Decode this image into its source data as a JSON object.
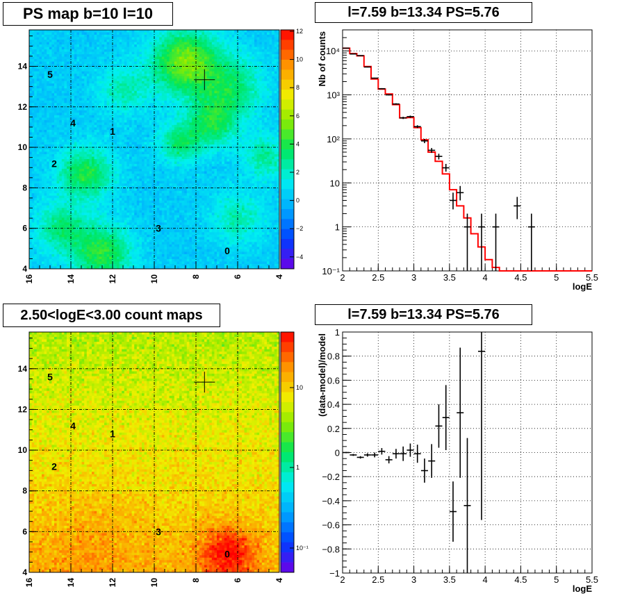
{
  "panels": {
    "tl_title": "PS map b=10 l=10",
    "tr_title": "l=7.59 b=13.34 PS=5.76",
    "bl_title": "2.50<logE<3.00 count maps",
    "br_title": "l=7.59 b=13.34 PS=5.76"
  },
  "chart_data": [
    {
      "type": "heatmap",
      "name": "ps-map",
      "title": "PS map b=10 l=10",
      "xlim": [
        16,
        4
      ],
      "ylim": [
        4,
        15.8
      ],
      "x_ticks": [
        "16",
        "14",
        "12",
        "10",
        "8",
        "6",
        "4"
      ],
      "y_ticks": [
        "4",
        "6",
        "8",
        "10",
        "12",
        "14"
      ],
      "colorbar_ticks": [
        "12",
        "10",
        "8",
        "6",
        "4",
        "2",
        "0",
        "−2",
        "−4"
      ],
      "colorbar_range": [
        -5,
        12
      ],
      "sources": [
        {
          "label": "5",
          "l": 15.0,
          "b": 13.6
        },
        {
          "label": "4",
          "l": 13.9,
          "b": 11.2
        },
        {
          "label": "1",
          "l": 12.0,
          "b": 10.8
        },
        {
          "label": "2",
          "l": 14.8,
          "b": 9.2
        },
        {
          "label": "3",
          "l": 9.8,
          "b": 6.0
        },
        {
          "label": "0",
          "l": 6.5,
          "b": 4.9
        }
      ],
      "marker": {
        "l": 7.59,
        "b": 13.34
      },
      "grid": true
    },
    {
      "type": "line",
      "name": "spectrum",
      "title": "l=7.59 b=13.34 PS=5.76",
      "xlabel": "logE",
      "ylabel": "Nb of counts",
      "y_scale": "log",
      "xlim": [
        2,
        5.5
      ],
      "ylim": [
        0.1,
        30000
      ],
      "x_ticks": [
        "2",
        "2.5",
        "3",
        "3.5",
        "4",
        "4.5",
        "5",
        "5.5"
      ],
      "y_ticks": [
        "10⁻¹",
        "1",
        "10",
        "10²",
        "10³",
        "10⁴"
      ],
      "grid": true,
      "series": [
        {
          "kind": "data",
          "x": [
            2.05,
            2.15,
            2.25,
            2.35,
            2.45,
            2.55,
            2.65,
            2.75,
            2.85,
            2.95,
            3.05,
            3.15,
            3.25,
            3.35,
            3.45,
            3.55,
            3.65,
            3.75,
            3.95,
            4.15,
            4.45,
            4.65
          ],
          "y": [
            11500,
            8500,
            7800,
            4300,
            2400,
            1380,
            1000,
            620,
            300,
            320,
            190,
            90,
            55,
            40,
            22,
            4,
            6,
            1,
            1,
            1,
            3,
            1
          ],
          "y_low": [
            11300,
            8400,
            7700,
            4200,
            2350,
            1340,
            970,
            600,
            283,
            302,
            176,
            80,
            48,
            34,
            18,
            2.5,
            4,
            0.1,
            0.1,
            0.1,
            1.5,
            0.1
          ],
          "y_high": [
            11700,
            8600,
            7900,
            4400,
            2450,
            1420,
            1030,
            645,
            317,
            338,
            204,
            100,
            62,
            46,
            27,
            6,
            8.5,
            2,
            2,
            2,
            4.8,
            2
          ]
        },
        {
          "kind": "model",
          "color": "#ff0000",
          "edges": [
            2.0,
            2.1,
            2.2,
            2.3,
            2.4,
            2.5,
            2.6,
            2.7,
            2.8,
            2.9,
            3.0,
            3.1,
            3.2,
            3.3,
            3.4,
            3.5,
            3.6,
            3.7,
            3.8,
            3.9,
            4.0,
            4.1,
            4.2,
            4.3,
            5.5
          ],
          "values": [
            11500,
            8700,
            7700,
            4400,
            2300,
            1350,
            1050,
            600,
            300,
            305,
            180,
            95,
            50,
            31,
            16,
            7,
            3,
            1.6,
            0.7,
            0.35,
            0.18,
            0.12,
            0.1,
            0.1
          ]
        }
      ]
    },
    {
      "type": "heatmap",
      "name": "count-map",
      "title": "2.50<logE<3.00 count maps",
      "xlim": [
        16,
        4
      ],
      "ylim": [
        4,
        15.8
      ],
      "x_ticks": [
        "16",
        "14",
        "12",
        "10",
        "8",
        "6",
        "4"
      ],
      "y_ticks": [
        "4",
        "6",
        "8",
        "10",
        "12",
        "14"
      ],
      "colorbar_scale": "log",
      "colorbar_ticks": [
        "10",
        "1",
        "10⁻¹"
      ],
      "colorbar_range": [
        0.04,
        40
      ],
      "sources": [
        {
          "label": "5",
          "l": 15.0,
          "b": 13.6
        },
        {
          "label": "4",
          "l": 13.9,
          "b": 11.2
        },
        {
          "label": "1",
          "l": 12.0,
          "b": 10.8
        },
        {
          "label": "2",
          "l": 14.8,
          "b": 9.2
        },
        {
          "label": "3",
          "l": 9.8,
          "b": 6.0
        },
        {
          "label": "0",
          "l": 6.5,
          "b": 4.9
        }
      ],
      "marker": {
        "l": 7.59,
        "b": 13.34
      },
      "grid": true
    },
    {
      "type": "scatter",
      "name": "residuals",
      "title": "l=7.59 b=13.34 PS=5.76",
      "xlabel": "logE",
      "ylabel": "(data-model)/model",
      "xlim": [
        2,
        5.5
      ],
      "ylim": [
        -1,
        1
      ],
      "x_ticks": [
        "2",
        "2.5",
        "3",
        "3.5",
        "4",
        "4.5",
        "5",
        "5.5"
      ],
      "y_ticks": [
        "−1",
        "−0.8",
        "−0.6",
        "−0.4",
        "−0.2",
        "0",
        "0.2",
        "0.4",
        "0.6",
        "0.8",
        "1"
      ],
      "grid": true,
      "x": [
        2.05,
        2.15,
        2.25,
        2.35,
        2.45,
        2.55,
        2.65,
        2.75,
        2.85,
        2.95,
        3.05,
        3.15,
        3.25,
        3.35,
        3.45,
        3.55,
        3.65,
        3.75,
        3.95
      ],
      "y": [
        0.0,
        -0.02,
        -0.04,
        -0.02,
        -0.02,
        0.01,
        -0.06,
        -0.01,
        -0.01,
        0.02,
        -0.01,
        -0.15,
        -0.07,
        0.22,
        0.29,
        -0.49,
        0.33,
        -0.44,
        0.84
      ],
      "y_err": [
        0.005,
        0.008,
        0.01,
        0.014,
        0.02,
        0.027,
        0.03,
        0.04,
        0.06,
        0.055,
        0.075,
        0.1,
        0.14,
        0.18,
        0.27,
        0.25,
        0.54,
        0.56,
        1.4
      ]
    }
  ]
}
